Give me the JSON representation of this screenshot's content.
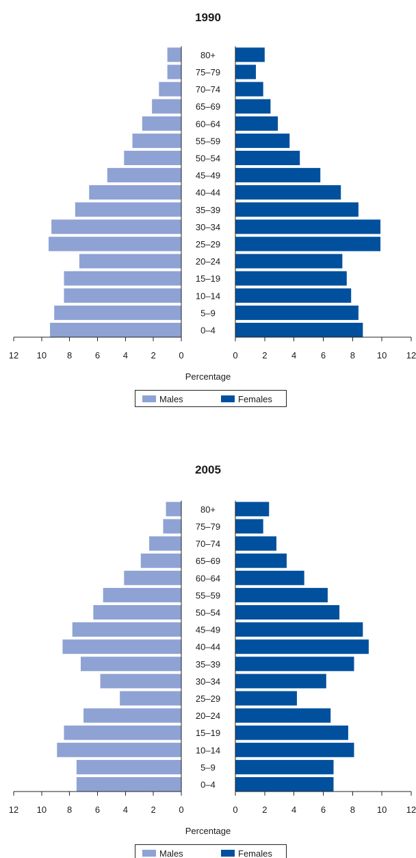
{
  "chart_data": [
    {
      "type": "bar",
      "title": "1990",
      "xlabel": "Percentage",
      "xlim": [
        0,
        12
      ],
      "xticks": [
        "12",
        "10",
        "8",
        "6",
        "4",
        "2",
        "0",
        "0",
        "2",
        "4",
        "6",
        "8",
        "10",
        "12"
      ],
      "categories": [
        "0–4",
        "5–9",
        "10–14",
        "15–19",
        "20–24",
        "25–29",
        "30–34",
        "35–39",
        "40–44",
        "45–49",
        "50–54",
        "55–59",
        "60–64",
        "65–69",
        "70–74",
        "75–79",
        "80+"
      ],
      "series": [
        {
          "name": "Males",
          "color": "#8ea2d4",
          "values": [
            9.4,
            9.1,
            8.4,
            8.4,
            7.3,
            9.5,
            9.3,
            7.6,
            6.6,
            5.3,
            4.1,
            3.5,
            2.8,
            2.1,
            1.6,
            1.0,
            1.0
          ]
        },
        {
          "name": "Females",
          "color": "#00509d",
          "values": [
            8.7,
            8.4,
            7.9,
            7.6,
            7.3,
            9.9,
            9.9,
            8.4,
            7.2,
            5.8,
            4.4,
            3.7,
            2.9,
            2.4,
            1.9,
            1.4,
            2.0
          ]
        }
      ],
      "legend": {
        "position": "bottom",
        "entries": [
          "Males",
          "Females"
        ]
      }
    },
    {
      "type": "bar",
      "title": "2005",
      "xlabel": "Percentage",
      "xlim": [
        0,
        12
      ],
      "xticks": [
        "12",
        "10",
        "8",
        "6",
        "4",
        "2",
        "0",
        "0",
        "2",
        "4",
        "6",
        "8",
        "10",
        "12"
      ],
      "categories": [
        "0–4",
        "5–9",
        "10–14",
        "15–19",
        "20–24",
        "25–29",
        "30–34",
        "35–39",
        "40–44",
        "45–49",
        "50–54",
        "55–59",
        "60–64",
        "65–69",
        "70–74",
        "75–79",
        "80+"
      ],
      "series": [
        {
          "name": "Males",
          "color": "#8ea2d4",
          "values": [
            7.5,
            7.5,
            8.9,
            8.4,
            7.0,
            4.4,
            5.8,
            7.2,
            8.5,
            7.8,
            6.3,
            5.6,
            4.1,
            2.9,
            2.3,
            1.3,
            1.1
          ]
        },
        {
          "name": "Females",
          "color": "#00509d",
          "values": [
            6.7,
            6.7,
            8.1,
            7.7,
            6.5,
            4.2,
            6.2,
            8.1,
            9.1,
            8.7,
            7.1,
            6.3,
            4.7,
            3.5,
            2.8,
            1.9,
            2.3
          ]
        }
      ],
      "legend": {
        "position": "bottom",
        "entries": [
          "Males",
          "Females"
        ]
      }
    }
  ]
}
